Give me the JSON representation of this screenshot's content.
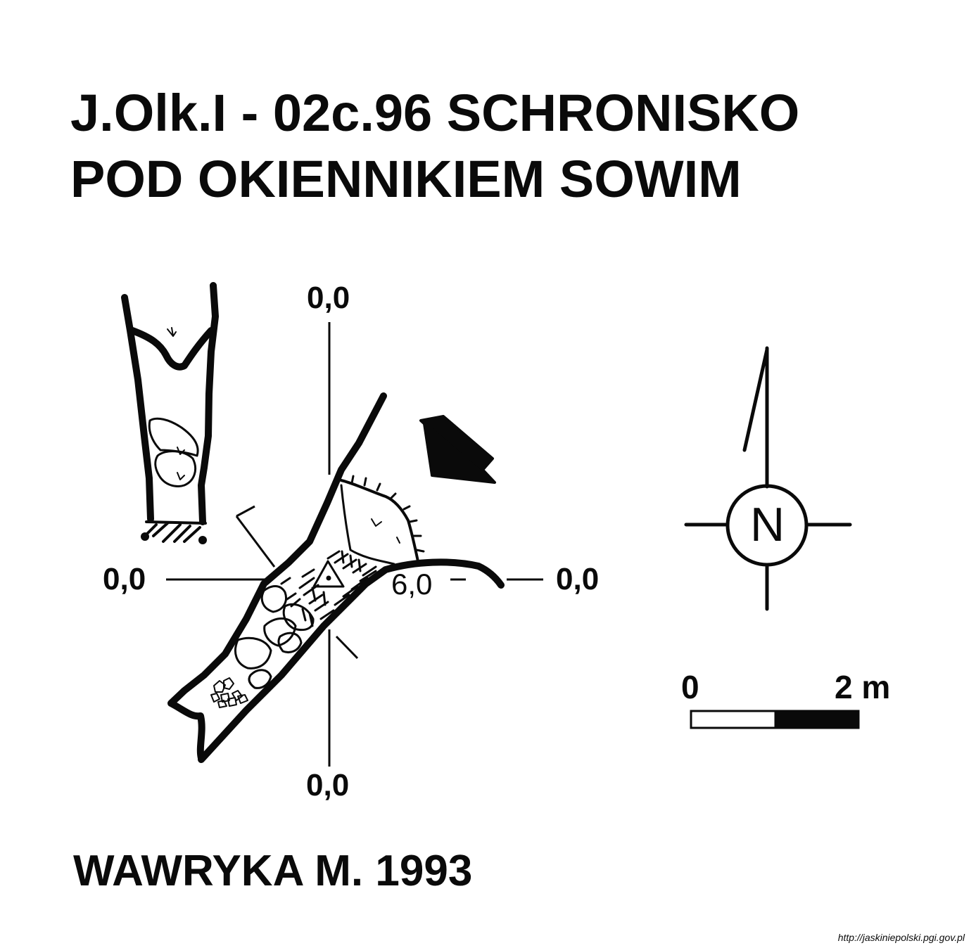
{
  "title": {
    "line1": "J.Olk.I - 02c.96  SCHRONISKO",
    "line2": "POD OKIENNIKIEM SOWIM"
  },
  "author": "WAWRYKA M. 1993",
  "source_url": "http://jaskiniepolski.pgi.gov.pl",
  "plan": {
    "axis_labels": {
      "top": "0,0",
      "left": "0,0",
      "right": "0,0",
      "bottom": "0,0"
    },
    "depth_label": "6,0"
  },
  "compass": {
    "letter": "N"
  },
  "scale_bar": {
    "start_label": "0",
    "end_label": "2 m"
  },
  "colors": {
    "ink": "#0a0a0a",
    "background": "#ffffff"
  }
}
